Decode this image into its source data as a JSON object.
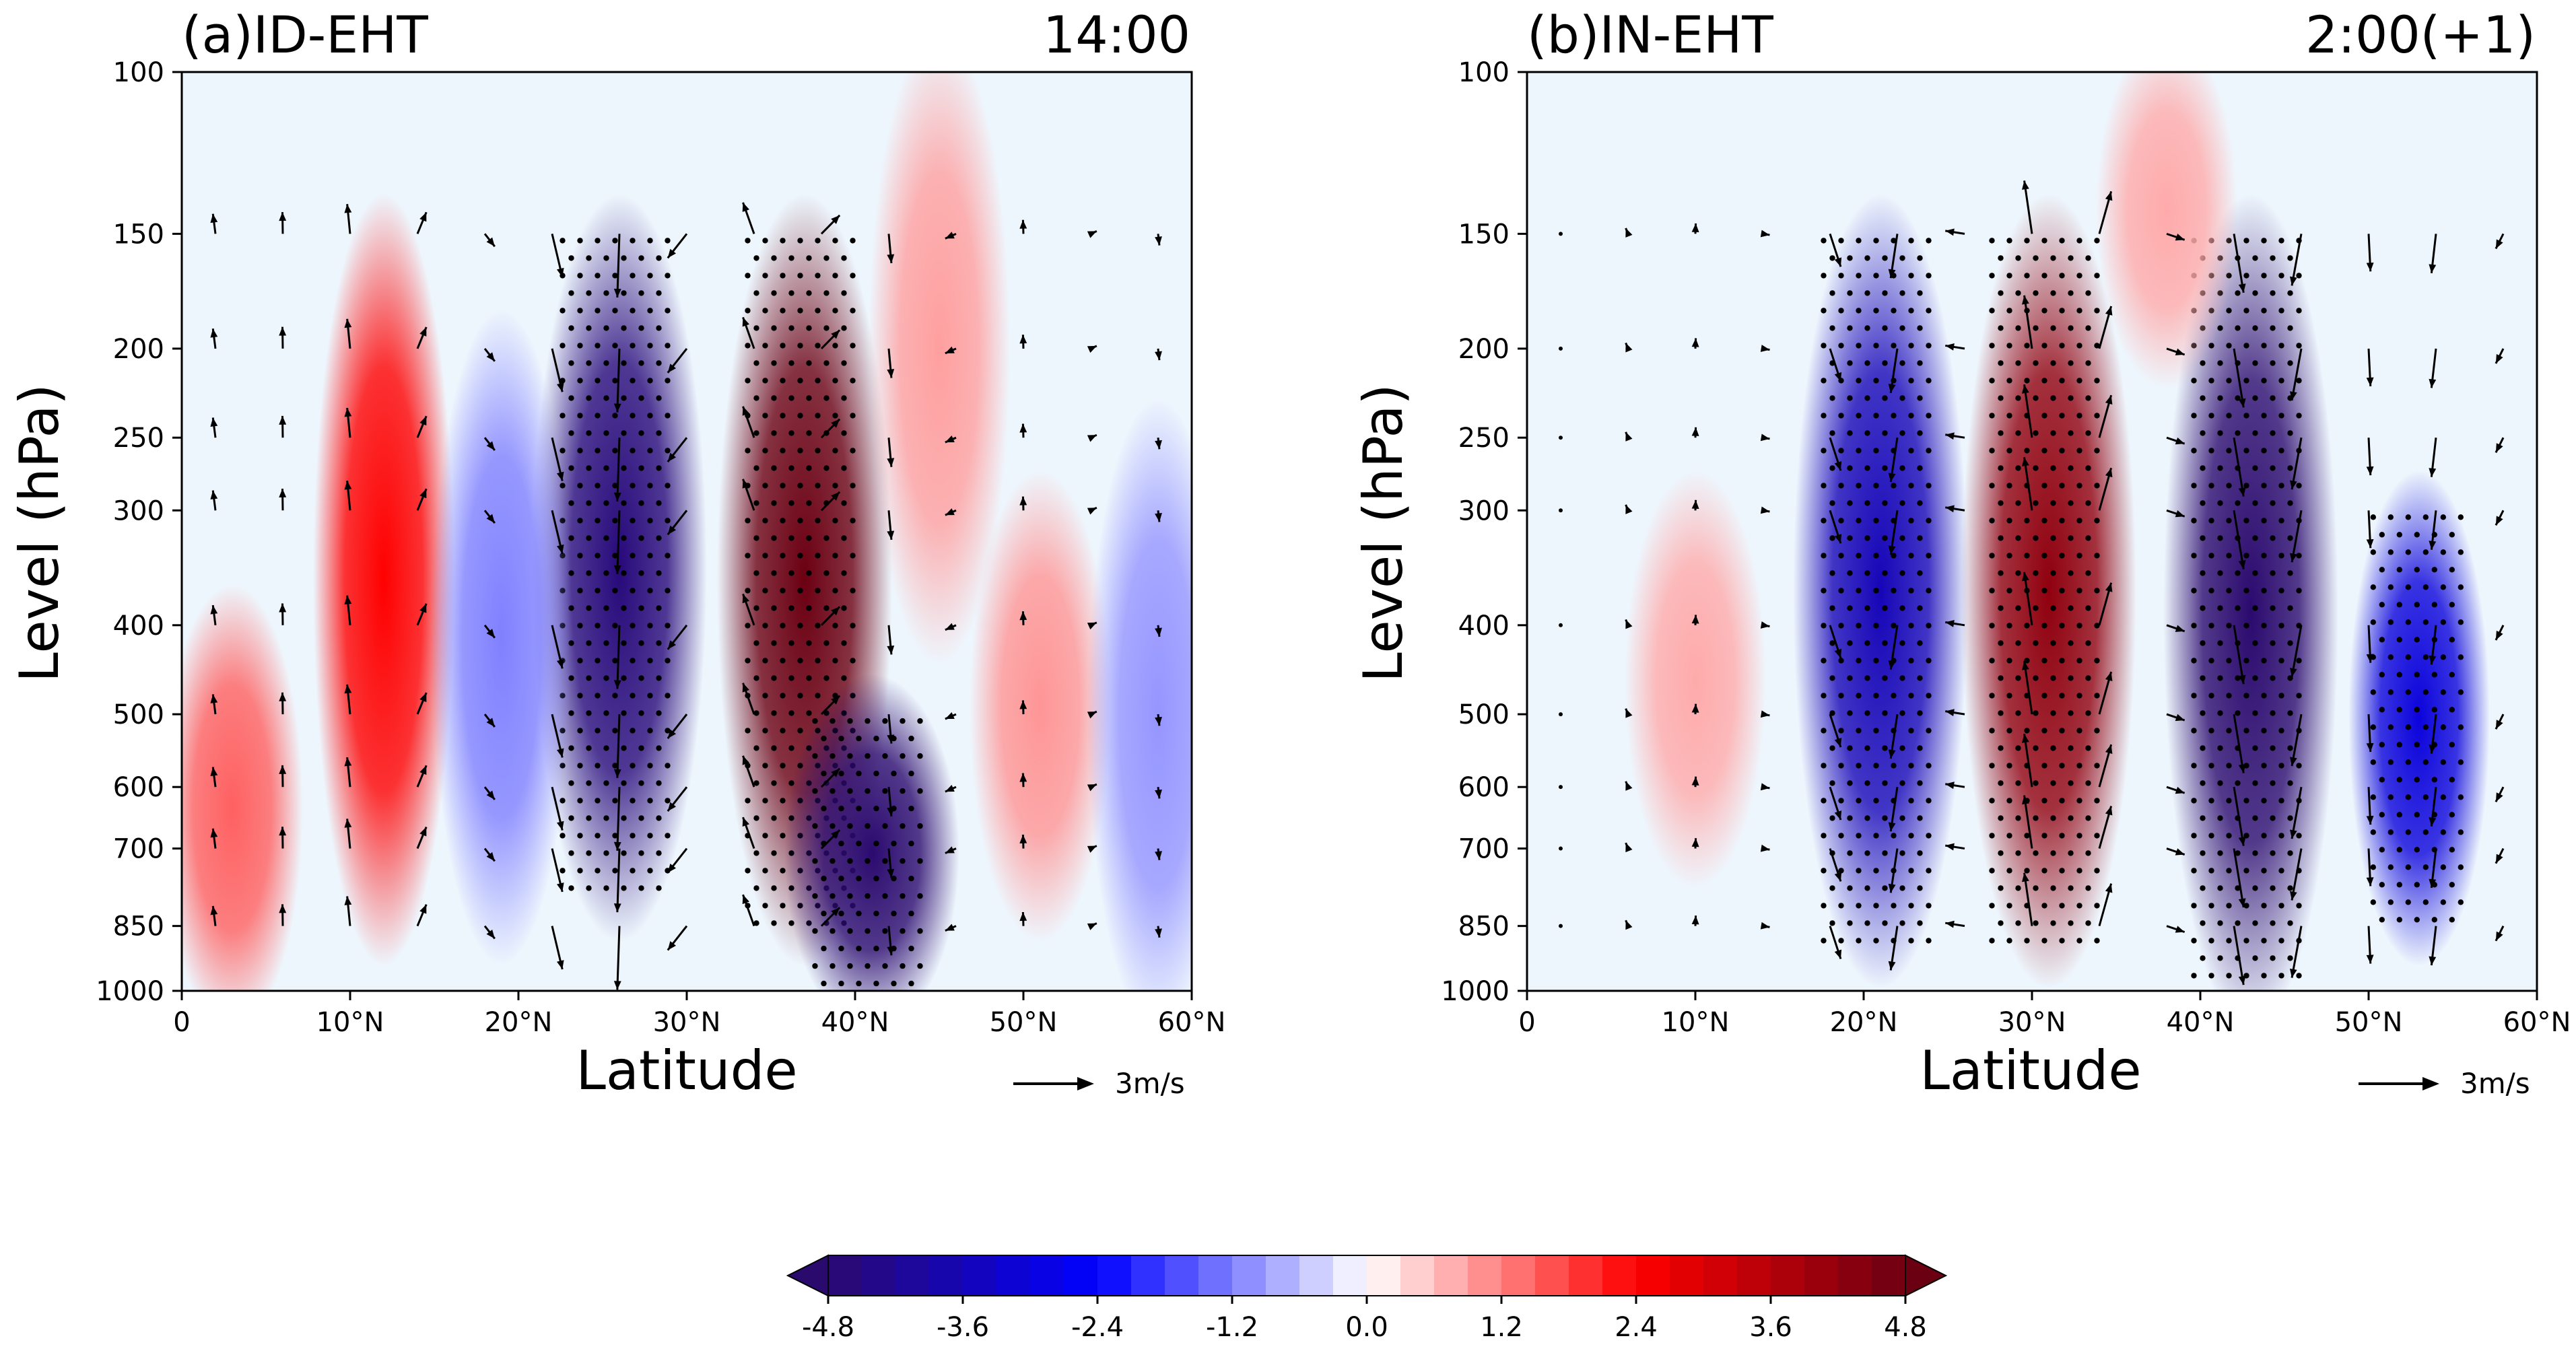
{
  "chart_data": [
    {
      "type": "heatmap",
      "panel_label": "(a)ID-EHT",
      "time_label": "14:00",
      "xlabel": "Latitude",
      "ylabel": "Level (hPa)",
      "xlim": [
        0,
        60
      ],
      "x_ticks": [
        0,
        10,
        20,
        30,
        40,
        50,
        60
      ],
      "x_tick_labels": [
        "0",
        "10°N",
        "20°N",
        "30°N",
        "40°N",
        "50°N",
        "60°N"
      ],
      "y_ticks": [
        100,
        150,
        200,
        250,
        300,
        400,
        500,
        600,
        700,
        850,
        1000
      ],
      "y_tick_labels": [
        "100",
        "150",
        "200",
        "250",
        "300",
        "400",
        "500",
        "600",
        "700",
        "850",
        "1000"
      ],
      "vector_key_label": "3m/s",
      "features": [
        {
          "lat": 12,
          "lev_top": 150,
          "lev_bot": 850,
          "amp": 2.4
        },
        {
          "lat": 3,
          "lev_top": 400,
          "lev_bot": 1000,
          "amp": 1.5
        },
        {
          "lat": 26,
          "lev_top": 150,
          "lev_bot": 800,
          "amp": -4.6
        },
        {
          "lat": 19,
          "lev_top": 200,
          "lev_bot": 850,
          "amp": -1.2
        },
        {
          "lat": 37,
          "lev_top": 150,
          "lev_bot": 850,
          "amp": 4.8
        },
        {
          "lat": 41,
          "lev_top": 500,
          "lev_bot": 1000,
          "amp": -4.8
        },
        {
          "lat": 45,
          "lev_top": 100,
          "lev_bot": 400,
          "amp": 0.9
        },
        {
          "lat": 51,
          "lev_top": 300,
          "lev_bot": 800,
          "amp": 1.0
        },
        {
          "lat": 58,
          "lev_top": 250,
          "lev_bot": 1000,
          "amp": -1.0
        }
      ]
    },
    {
      "type": "heatmap",
      "panel_label": "(b)IN-EHT",
      "time_label": "2:00(+1)",
      "xlabel": "Latitude",
      "ylabel": "Level (hPa)",
      "xlim": [
        0,
        60
      ],
      "x_ticks": [
        0,
        10,
        20,
        30,
        40,
        50,
        60
      ],
      "x_tick_labels": [
        "0",
        "10°N",
        "20°N",
        "30°N",
        "40°N",
        "50°N",
        "60°N"
      ],
      "y_ticks": [
        100,
        150,
        200,
        250,
        300,
        400,
        500,
        600,
        700,
        850,
        1000
      ],
      "y_tick_labels": [
        "100",
        "150",
        "200",
        "250",
        "300",
        "400",
        "500",
        "600",
        "700",
        "850",
        "1000"
      ],
      "vector_key_label": "3m/s",
      "features": [
        {
          "lat": 21,
          "lev_top": 150,
          "lev_bot": 900,
          "amp": -3.6
        },
        {
          "lat": 31,
          "lev_top": 150,
          "lev_bot": 900,
          "amp": 4.2
        },
        {
          "lat": 43,
          "lev_top": 150,
          "lev_bot": 1000,
          "amp": -5.0
        },
        {
          "lat": 53,
          "lev_top": 300,
          "lev_bot": 850,
          "amp": -3.0
        },
        {
          "lat": 10,
          "lev_top": 300,
          "lev_bot": 700,
          "amp": 0.8
        },
        {
          "lat": 38,
          "lev_top": 100,
          "lev_bot": 200,
          "amp": 0.8
        }
      ]
    }
  ],
  "colorbar": {
    "vmin": -4.8,
    "vmax": 4.8,
    "tick_values": [
      -4.8,
      -3.6,
      -2.4,
      -1.2,
      0.0,
      1.2,
      2.4,
      3.6,
      4.8
    ],
    "tick_labels": [
      "-4.8",
      "-3.6",
      "-2.4",
      "-1.2",
      "0.0",
      "1.2",
      "2.4",
      "3.6",
      "4.8"
    ],
    "colors": [
      "#2b0a6e",
      "#0000ff",
      "#ffffff",
      "#ff0000",
      "#6b0012"
    ]
  }
}
